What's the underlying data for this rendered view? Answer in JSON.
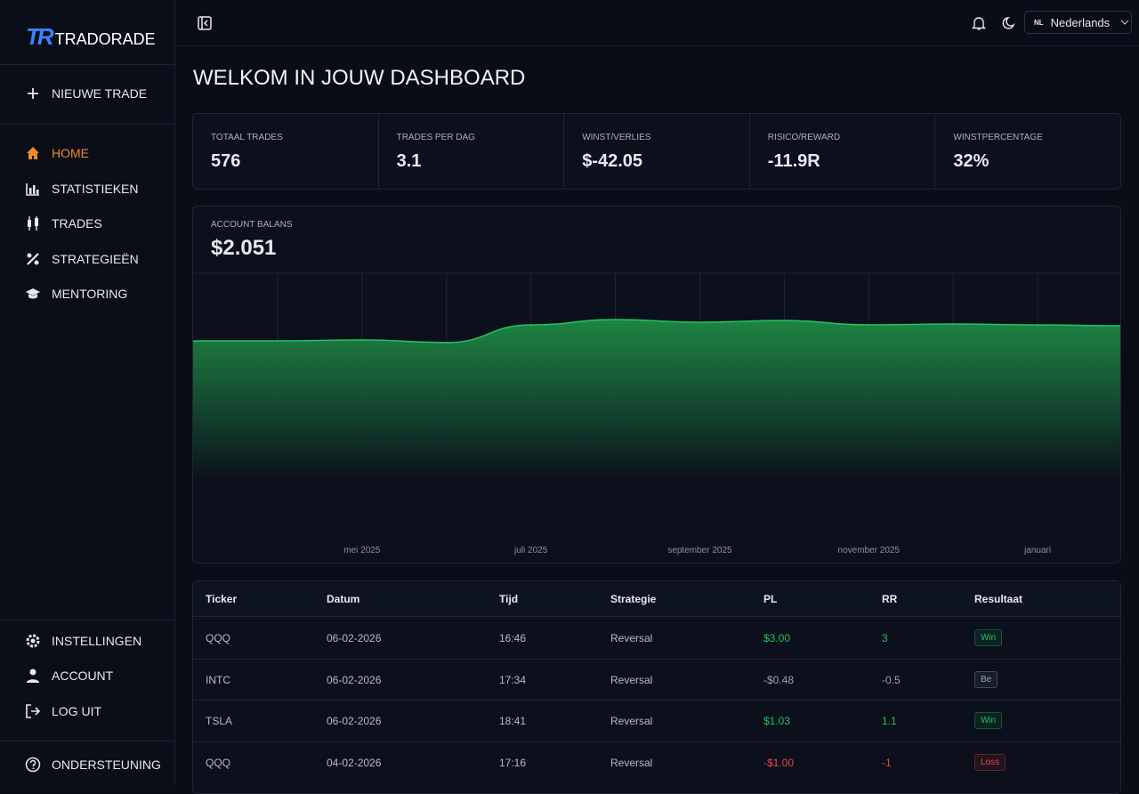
{
  "brand": {
    "mark": "TR",
    "name": "TRADORADE"
  },
  "sidebar": {
    "new_trade": "NIEUWE TRADE",
    "nav": [
      "HOME",
      "STATISTIEKEN",
      "TRADES",
      "STRATEGIEËN",
      "MENTORING"
    ],
    "bottom": [
      "INSTELLINGEN",
      "ACCOUNT",
      "LOG UIT"
    ],
    "support": "ONDERSTEUNING"
  },
  "topbar": {
    "lang_code": "NL",
    "language": "Nederlands"
  },
  "page_title": "WELKOM IN JOUW DASHBOARD",
  "stats": [
    {
      "label": "TOTAAL TRADES",
      "value": "576"
    },
    {
      "label": "TRADES PER DAG",
      "value": "3.1"
    },
    {
      "label": "WINST/VERLIES",
      "value": "$-42.05"
    },
    {
      "label": "RISICO/REWARD",
      "value": "-11.9R"
    },
    {
      "label": "WINSTPERCENTAGE",
      "value": "32%"
    }
  ],
  "balance": {
    "label": "ACCOUNT BALANS",
    "value": "$2.051"
  },
  "chart_data": {
    "type": "area",
    "color": "#22c55e",
    "categories": [
      null,
      null,
      "mei 2025",
      null,
      "juli 2025",
      null,
      "september 2025",
      null,
      "november 2025",
      null,
      "januari",
      null
    ],
    "values": [
      1903,
      1903,
      1912,
      1886,
      2060,
      2112,
      2086,
      2103,
      2060,
      2068,
      2060,
      2051
    ],
    "ylim": [
      0,
      2566
    ],
    "grid": true
  },
  "table": {
    "columns": [
      "Ticker",
      "Datum",
      "Tijd",
      "Strategie",
      "PL",
      "RR",
      "Resultaat"
    ],
    "rows": [
      {
        "cells": [
          "QQQ",
          "06-02-2026",
          "16:46",
          "Reversal",
          "$3.00",
          "3",
          "Win"
        ],
        "color": "#22c55e"
      },
      {
        "cells": [
          "INTC",
          "06-02-2026",
          "17:34",
          "Reversal",
          "-$0.48",
          "-0.5",
          "Be"
        ],
        "color": "#9aa3b2"
      },
      {
        "cells": [
          "TSLA",
          "06-02-2026",
          "18:41",
          "Reversal",
          "$1.03",
          "1.1",
          "Win"
        ],
        "color": "#22c55e"
      },
      {
        "cells": [
          "QQQ",
          "04-02-2026",
          "17:16",
          "Reversal",
          "-$1.00",
          "-1",
          "Loss"
        ],
        "color": "#ef4444"
      }
    ]
  }
}
